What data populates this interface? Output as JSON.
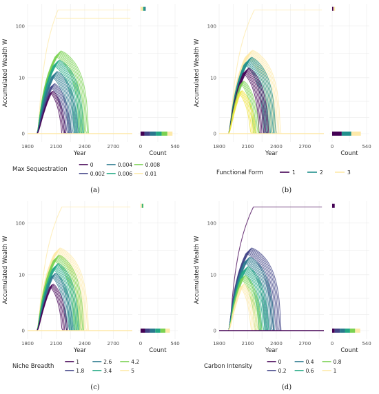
{
  "chart_data": [
    {
      "id": "a",
      "type": "line",
      "panel_label": "(a)",
      "ylabel": "Accumulated Wealth W",
      "xlabel": "Year",
      "hist_xlabel": "Count",
      "x_ticks": [
        "1800",
        "2100",
        "2400",
        "2700"
      ],
      "y_ticks": [
        "0",
        "10",
        "100"
      ],
      "hist_ticks": [
        "0",
        "540"
      ],
      "xlim": [
        1800,
        2900
      ],
      "y_scale": "pseudo-log",
      "legend_title": "Max Sequestration",
      "legend": [
        {
          "label": "0",
          "color": "#440154"
        },
        {
          "label": "0.002",
          "color": "#414487"
        },
        {
          "label": "0.004",
          "color": "#2a788e"
        },
        {
          "label": "0.006",
          "color": "#22a884"
        },
        {
          "label": "0.008",
          "color": "#7ad151"
        },
        {
          "label": "0.01",
          "color": "#fde9a9"
        }
      ],
      "levels": [
        {
          "color": "#fde9a9",
          "kind": "plateau",
          "plateau": 200,
          "peak_year": 2000,
          "end_year": 2120,
          "secondary_plateau": 140,
          "nlines": 1
        },
        {
          "color": "#7ad151",
          "kind": "hump",
          "peak": 30,
          "peak_year": 2120,
          "end_year": 2390,
          "nlines": 8
        },
        {
          "color": "#22a884",
          "kind": "hump",
          "peak": 20,
          "peak_year": 2100,
          "end_year": 2340,
          "nlines": 8
        },
        {
          "color": "#2a788e",
          "kind": "hump",
          "peak": 12,
          "peak_year": 2080,
          "end_year": 2280,
          "nlines": 8
        },
        {
          "color": "#414487",
          "kind": "hump",
          "peak": 7,
          "peak_year": 2060,
          "end_year": 2220,
          "nlines": 6
        },
        {
          "color": "#440154",
          "kind": "hump",
          "peak": 5,
          "peak_year": 2050,
          "end_year": 2180,
          "nlines": 4
        }
      ],
      "hist_bottom": [
        {
          "color": "#440154",
          "count": 60
        },
        {
          "color": "#414487",
          "count": 90
        },
        {
          "color": "#2a788e",
          "count": 90
        },
        {
          "color": "#22a884",
          "count": 90
        },
        {
          "color": "#7ad151",
          "count": 90
        },
        {
          "color": "#fde9a9",
          "count": 80
        }
      ],
      "hist_top": [
        {
          "color": "#fde9a9",
          "count": 40
        },
        {
          "color": "#22a884",
          "count": 20
        },
        {
          "color": "#2a788e",
          "count": 20
        }
      ]
    },
    {
      "id": "b",
      "type": "line",
      "panel_label": "(b)",
      "ylabel": "Accumulated Wealth W",
      "xlabel": "Year",
      "hist_xlabel": "Count",
      "x_ticks": [
        "1800",
        "2100",
        "2400",
        "2700"
      ],
      "y_ticks": [
        "0",
        "10",
        "100"
      ],
      "hist_ticks": [
        "0",
        "540"
      ],
      "xlim": [
        1800,
        2900
      ],
      "y_scale": "pseudo-log",
      "legend_title": "Functional Form",
      "legend": [
        {
          "label": "1",
          "color": "#440154"
        },
        {
          "label": "2",
          "color": "#21908c"
        },
        {
          "label": "3",
          "color": "#fde9a9"
        }
      ],
      "levels": [
        {
          "color": "#fde9a9",
          "kind": "plateau",
          "plateau": 200,
          "peak_year": 2050,
          "end_year": 2170,
          "nlines": 1
        },
        {
          "color": "#fde9a9",
          "kind": "hump",
          "peak": 30,
          "peak_year": 2110,
          "end_year": 2380,
          "nlines": 10
        },
        {
          "color": "#21908c",
          "kind": "hump",
          "peak": 22,
          "peak_year": 2100,
          "end_year": 2330,
          "nlines": 10
        },
        {
          "color": "#440154",
          "kind": "hump",
          "peak": 14,
          "peak_year": 2080,
          "end_year": 2270,
          "nlines": 8
        },
        {
          "color": "#7ad151",
          "kind": "hump",
          "peak": 8,
          "peak_year": 2040,
          "end_year": 2190,
          "nlines": 5
        },
        {
          "color": "#f0e442",
          "kind": "hump",
          "peak": 5,
          "peak_year": 2020,
          "end_year": 2160,
          "nlines": 5
        }
      ],
      "hist_bottom": [
        {
          "color": "#440154",
          "count": 150
        },
        {
          "color": "#21908c",
          "count": 150
        },
        {
          "color": "#fde9a9",
          "count": 150
        }
      ],
      "hist_top": [
        {
          "color": "#440154",
          "count": 20
        },
        {
          "color": "#fde9a9",
          "count": 25
        }
      ]
    },
    {
      "id": "c",
      "type": "line",
      "panel_label": "(c)",
      "ylabel": "Accumulated Wealth W",
      "xlabel": "Year",
      "hist_xlabel": "Count",
      "x_ticks": [
        "1800",
        "2100",
        "2400",
        "2700"
      ],
      "y_ticks": [
        "0",
        "10",
        "100"
      ],
      "hist_ticks": [
        "0",
        "540"
      ],
      "xlim": [
        1800,
        2900
      ],
      "y_scale": "pseudo-log",
      "legend_title": "Niche Breadth",
      "legend": [
        {
          "label": "1",
          "color": "#440154"
        },
        {
          "label": "1.8",
          "color": "#414487"
        },
        {
          "label": "2.6",
          "color": "#2a788e"
        },
        {
          "label": "3.4",
          "color": "#22a884"
        },
        {
          "label": "4.2",
          "color": "#7ad151"
        },
        {
          "label": "5",
          "color": "#fde9a9"
        }
      ],
      "levels": [
        {
          "color": "#fde9a9",
          "kind": "plateau",
          "plateau": 200,
          "peak_year": 2040,
          "end_year": 2160,
          "nlines": 1
        },
        {
          "color": "#fde9a9",
          "kind": "hump",
          "peak": 30,
          "peak_year": 2110,
          "end_year": 2390,
          "nlines": 8
        },
        {
          "color": "#7ad151",
          "kind": "hump",
          "peak": 22,
          "peak_year": 2100,
          "end_year": 2340,
          "nlines": 8
        },
        {
          "color": "#22a884",
          "kind": "hump",
          "peak": 15,
          "peak_year": 2090,
          "end_year": 2290,
          "nlines": 8
        },
        {
          "color": "#2a788e",
          "kind": "hump",
          "peak": 10,
          "peak_year": 2070,
          "end_year": 2240,
          "nlines": 6
        },
        {
          "color": "#440154",
          "kind": "hump",
          "peak": 6,
          "peak_year": 2050,
          "end_year": 2190,
          "nlines": 5
        }
      ],
      "hist_bottom": [
        {
          "color": "#440154",
          "count": 70
        },
        {
          "color": "#414487",
          "count": 80
        },
        {
          "color": "#2a788e",
          "count": 80
        },
        {
          "color": "#22a884",
          "count": 80
        },
        {
          "color": "#7ad151",
          "count": 80
        },
        {
          "color": "#fde9a9",
          "count": 70
        }
      ],
      "hist_top": [
        {
          "color": "#fde9a9",
          "count": 20
        },
        {
          "color": "#22a884",
          "count": 15
        },
        {
          "color": "#7ad151",
          "count": 10
        }
      ]
    },
    {
      "id": "d",
      "type": "line",
      "panel_label": "(d)",
      "ylabel": "Accumulated Wealth W",
      "xlabel": "Year",
      "hist_xlabel": "Count",
      "x_ticks": [
        "1800",
        "2100",
        "2400",
        "2700"
      ],
      "y_ticks": [
        "0",
        "10",
        "100"
      ],
      "hist_ticks": [
        "0",
        "540"
      ],
      "xlim": [
        1800,
        2900
      ],
      "y_scale": "pseudo-log",
      "legend_title": "Carbon Intensity",
      "legend": [
        {
          "label": "0",
          "color": "#440154"
        },
        {
          "label": "0.2",
          "color": "#414487"
        },
        {
          "label": "0.4",
          "color": "#2a788e"
        },
        {
          "label": "0.6",
          "color": "#22a884"
        },
        {
          "label": "0.8",
          "color": "#7ad151"
        },
        {
          "label": "1",
          "color": "#fde9a9"
        }
      ],
      "levels": [
        {
          "color": "#440154",
          "kind": "plateau",
          "plateau": 200,
          "peak_year": 2040,
          "end_year": 2160,
          "nlines": 1
        },
        {
          "color": "#414487",
          "kind": "hump",
          "peak": 30,
          "peak_year": 2110,
          "end_year": 2400,
          "nlines": 8
        },
        {
          "color": "#2a788e",
          "kind": "hump",
          "peak": 20,
          "peak_year": 2090,
          "end_year": 2330,
          "nlines": 8
        },
        {
          "color": "#22a884",
          "kind": "hump",
          "peak": 13,
          "peak_year": 2070,
          "end_year": 2270,
          "nlines": 8
        },
        {
          "color": "#7ad151",
          "kind": "hump",
          "peak": 9,
          "peak_year": 2050,
          "end_year": 2210,
          "nlines": 6
        },
        {
          "color": "#fde9a9",
          "kind": "hump",
          "peak": 6,
          "peak_year": 2040,
          "end_year": 2170,
          "nlines": 6
        }
      ],
      "hist_bottom": [
        {
          "color": "#440154",
          "count": 40
        },
        {
          "color": "#414487",
          "count": 80
        },
        {
          "color": "#2a788e",
          "count": 80
        },
        {
          "color": "#22a884",
          "count": 80
        },
        {
          "color": "#7ad151",
          "count": 80
        },
        {
          "color": "#fde9a9",
          "count": 80
        }
      ],
      "hist_top": [
        {
          "color": "#440154",
          "count": 40
        }
      ]
    }
  ]
}
